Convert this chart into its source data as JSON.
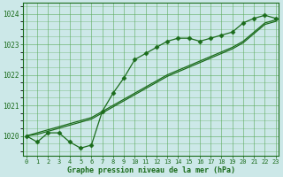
{
  "hours": [
    0,
    1,
    2,
    3,
    4,
    5,
    6,
    7,
    8,
    9,
    10,
    11,
    12,
    13,
    14,
    15,
    16,
    17,
    18,
    19,
    20,
    21,
    22,
    23
  ],
  "pressure_zigzag": [
    1020.0,
    1019.8,
    1020.1,
    1020.1,
    1019.8,
    1019.6,
    1019.7,
    1020.8,
    1021.4,
    1021.9,
    1022.5,
    1022.7,
    1022.9,
    1023.1,
    1023.2,
    1023.2,
    1023.1,
    1023.2,
    1023.3,
    1023.4,
    1023.7,
    1023.85,
    1023.95,
    1023.85
  ],
  "pressure_line1": [
    1020.0,
    1020.1,
    1020.2,
    1020.3,
    1020.4,
    1020.5,
    1020.6,
    1020.8,
    1021.0,
    1021.2,
    1021.4,
    1021.6,
    1021.8,
    1022.0,
    1022.15,
    1022.3,
    1022.45,
    1022.6,
    1022.75,
    1022.9,
    1023.1,
    1023.4,
    1023.7,
    1023.8
  ],
  "pressure_line2": [
    1020.0,
    1020.05,
    1020.15,
    1020.25,
    1020.35,
    1020.45,
    1020.55,
    1020.75,
    1020.95,
    1021.15,
    1021.35,
    1021.55,
    1021.75,
    1021.95,
    1022.1,
    1022.25,
    1022.4,
    1022.55,
    1022.7,
    1022.85,
    1023.05,
    1023.35,
    1023.65,
    1023.75
  ],
  "line_color": "#1a6b1a",
  "bg_color": "#cce8e8",
  "grid_color": "#5aaa5a",
  "ylabel_ticks": [
    1020,
    1021,
    1022,
    1023,
    1024
  ],
  "ylim": [
    1019.35,
    1024.35
  ],
  "xlim": [
    -0.3,
    23.3
  ],
  "xlabel": "Graphe pression niveau de la mer (hPa)",
  "marker": "D",
  "figwidth": 3.2,
  "figheight": 2.0,
  "dpi": 100
}
